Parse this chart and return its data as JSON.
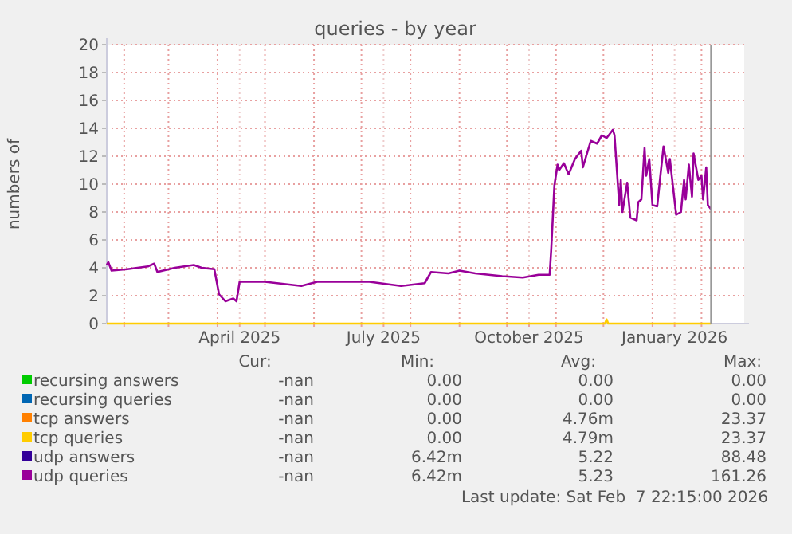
{
  "chart_data": {
    "type": "line",
    "title": "queries - by year",
    "ylabel": "numbers of",
    "xlim": [
      "2025-01-21",
      "2026-02-28"
    ],
    "xticks": [
      {
        "value": "2025-02-01",
        "label": null
      },
      {
        "value": "2025-03-01",
        "label": null
      },
      {
        "value": "2025-04-01",
        "label": null
      },
      {
        "value": "2025-04-15",
        "label": "April 2025"
      },
      {
        "value": "2025-05-01",
        "label": null
      },
      {
        "value": "2025-06-01",
        "label": null
      },
      {
        "value": "2025-07-01",
        "label": null
      },
      {
        "value": "2025-07-15",
        "label": "July 2025"
      },
      {
        "value": "2025-08-01",
        "label": null
      },
      {
        "value": "2025-09-01",
        "label": null
      },
      {
        "value": "2025-10-01",
        "label": null
      },
      {
        "value": "2025-10-15",
        "label": "October 2025"
      },
      {
        "value": "2025-11-01",
        "label": null
      },
      {
        "value": "2025-12-01",
        "label": null
      },
      {
        "value": "2026-01-01",
        "label": null
      },
      {
        "value": "2026-01-15",
        "label": "January 2026"
      },
      {
        "value": "2026-02-01",
        "label": null
      }
    ],
    "ylim": [
      0,
      20
    ],
    "yticks": [
      0,
      2,
      4,
      6,
      8,
      10,
      12,
      14,
      16,
      18,
      20
    ],
    "grid": true,
    "legend": "bottom",
    "marker": "none",
    "line_style": "solid",
    "ref_lines": [
      {
        "axis": "x",
        "value": "2026-02-07",
        "color": "#999999"
      }
    ],
    "series": [
      {
        "name": "recursing answers",
        "color": "#00cc00"
      },
      {
        "name": "recursing queries",
        "color": "#0066b3"
      },
      {
        "name": "tcp answers",
        "color": "#ff8000"
      },
      {
        "name": "tcp queries",
        "color": "#ffcc00",
        "x": [
          "2025-01-21",
          "2025-12-02",
          "2025-12-03",
          "2025-12-04",
          "2026-02-07"
        ],
        "values": [
          0,
          0,
          0.3,
          0,
          0
        ]
      },
      {
        "name": "udp answers",
        "color": "#330099"
      },
      {
        "name": "udp queries",
        "color": "#990099",
        "x": [
          "2025-01-21",
          "2025-01-22",
          "2025-01-24",
          "2025-02-03",
          "2025-02-16",
          "2025-02-20",
          "2025-02-22",
          "2025-03-05",
          "2025-03-17",
          "2025-03-22",
          "2025-03-30",
          "2025-04-02",
          "2025-04-06",
          "2025-04-11",
          "2025-04-13",
          "2025-04-15",
          "2025-05-01",
          "2025-05-24",
          "2025-06-03",
          "2025-07-06",
          "2025-07-26",
          "2025-08-10",
          "2025-08-14",
          "2025-08-25",
          "2025-09-01",
          "2025-09-11",
          "2025-09-28",
          "2025-10-11",
          "2025-10-21",
          "2025-10-28",
          "2025-10-29",
          "2025-10-31",
          "2025-11-02",
          "2025-11-03",
          "2025-11-06",
          "2025-11-09",
          "2025-11-13",
          "2025-11-17",
          "2025-11-18",
          "2025-11-23",
          "2025-11-27",
          "2025-11-30",
          "2025-12-03",
          "2025-12-07",
          "2025-12-08",
          "2025-12-11",
          "2025-12-12",
          "2025-12-13",
          "2025-12-16",
          "2025-12-18",
          "2025-12-22",
          "2025-12-23",
          "2025-12-25",
          "2025-12-27",
          "2025-12-28",
          "2025-12-30",
          "2026-01-01",
          "2026-01-04",
          "2026-01-06",
          "2026-01-08",
          "2026-01-11",
          "2026-01-12",
          "2026-01-16",
          "2026-01-19",
          "2026-01-21",
          "2026-01-22",
          "2026-01-24",
          "2026-01-26",
          "2026-01-27",
          "2026-01-30",
          "2026-02-01",
          "2026-02-02",
          "2026-02-04",
          "2026-02-05",
          "2026-02-07"
        ],
        "values": [
          4.2,
          4.4,
          3.8,
          3.9,
          4.1,
          4.3,
          3.7,
          4.0,
          4.2,
          4.0,
          3.9,
          2.1,
          1.6,
          1.8,
          1.6,
          3.0,
          3.0,
          2.7,
          3.0,
          3.0,
          2.7,
          2.9,
          3.7,
          3.6,
          3.8,
          3.6,
          3.4,
          3.3,
          3.5,
          3.5,
          5.3,
          9.9,
          11.4,
          11.0,
          11.5,
          10.7,
          11.8,
          12.4,
          11.2,
          13.1,
          12.9,
          13.5,
          13.3,
          13.9,
          13.5,
          8.5,
          10.3,
          8.0,
          10.1,
          7.6,
          7.4,
          8.7,
          8.9,
          12.6,
          10.6,
          11.8,
          8.5,
          8.4,
          10.6,
          12.7,
          10.8,
          11.8,
          7.8,
          8.0,
          10.3,
          8.9,
          11.4,
          9.1,
          12.2,
          10.3,
          10.6,
          8.9,
          11.2,
          8.5,
          8.2
        ]
      }
    ],
    "annotations": [
      "Cur:",
      "Min:",
      "Avg:",
      "Max:",
      "-nan",
      "0.00",
      "0.00",
      "0.00",
      "-nan",
      "0.00",
      "0.00",
      "0.00",
      "-nan",
      "0.00",
      "4.76m",
      "23.37",
      "-nan",
      "0.00",
      "4.79m",
      "23.37",
      "-nan",
      "6.42m",
      "5.22",
      "88.48",
      "-nan",
      "6.42m",
      "5.23",
      "161.26",
      "Last update: Sat Feb  7 22:15:00 2026"
    ]
  }
}
